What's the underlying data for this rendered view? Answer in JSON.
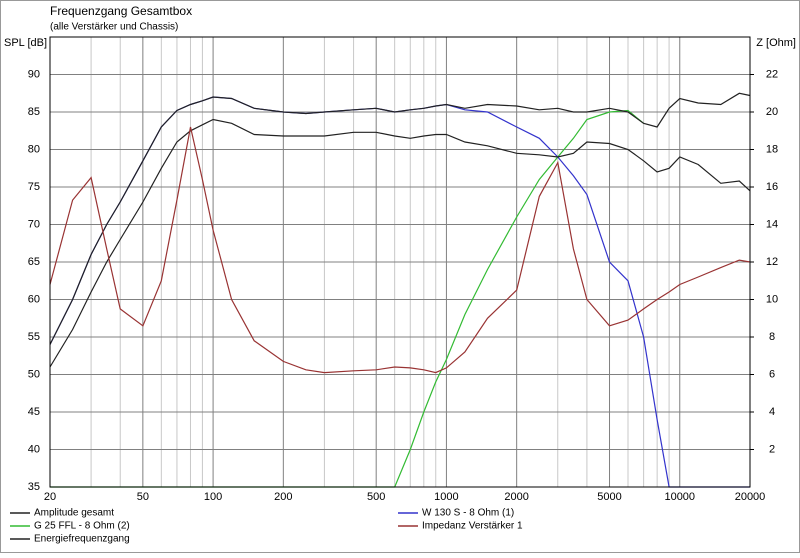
{
  "chart_data": {
    "type": "line",
    "title": "Frequenzgang Gesamtbox",
    "subtitle": "(alle Verstärker und Chassis)",
    "y_label": "SPL [dB]",
    "y2_label": "Z [Ohm]",
    "xscale": "log",
    "grid": true,
    "legend": "bottom",
    "xlim": [
      20,
      20000
    ],
    "xticks": [
      20,
      50,
      100,
      200,
      500,
      1000,
      2000,
      5000,
      10000,
      20000
    ],
    "xminorticks": [
      30,
      40,
      60,
      70,
      80,
      90,
      300,
      400,
      600,
      700,
      800,
      900,
      3000,
      4000,
      6000,
      7000,
      8000,
      9000
    ],
    "ylim": [
      35,
      95
    ],
    "yticks": [
      35,
      40,
      45,
      50,
      55,
      60,
      65,
      70,
      75,
      80,
      85,
      90
    ],
    "y2lim": [
      0,
      24
    ],
    "y2ticks": [
      2,
      4,
      6,
      8,
      10,
      12,
      14,
      16,
      18,
      20,
      22
    ],
    "x": [
      20,
      25,
      30,
      35,
      40,
      50,
      60,
      70,
      80,
      90,
      100,
      120,
      150,
      200,
      250,
      300,
      400,
      500,
      600,
      700,
      800,
      900,
      1000,
      1200,
      1500,
      2000,
      2500,
      3000,
      3500,
      4000,
      5000,
      6000,
      7000,
      8000,
      9000,
      10000,
      12000,
      15000,
      18000,
      20000
    ],
    "series": [
      {
        "name": "W 130 S - 8 Ohm (1)",
        "color": "#3333cc",
        "values": [
          54,
          60,
          66,
          70,
          73,
          78.5,
          83,
          85.2,
          86,
          86.5,
          87,
          86.8,
          85.5,
          85,
          84.8,
          85,
          85.3,
          85.5,
          85,
          85.3,
          85.5,
          85.8,
          86,
          85.3,
          85,
          83,
          81.5,
          79,
          76.5,
          74,
          65,
          62.5,
          55,
          44,
          35,
          35,
          35,
          35,
          35,
          35
        ]
      },
      {
        "name": "G 25 FFL - 8 Ohm (2)",
        "color": "#33bb33",
        "values": [
          35,
          35,
          35,
          35,
          35,
          35,
          35,
          35,
          35,
          35,
          35,
          35,
          35,
          35,
          35,
          35,
          35,
          35,
          35,
          40,
          45,
          49,
          52,
          58,
          64,
          71,
          76,
          79,
          81.5,
          84,
          85,
          85.2,
          83.5,
          null,
          null,
          null,
          null,
          null,
          null,
          null
        ]
      },
      {
        "name": "Amplitude gesamt",
        "color": "#222222",
        "values": [
          54,
          60,
          66,
          70,
          73,
          78.5,
          83,
          85.2,
          86,
          86.5,
          87,
          86.8,
          85.5,
          85,
          84.8,
          85,
          85.3,
          85.5,
          85,
          85.3,
          85.5,
          85.8,
          86,
          85.5,
          86,
          85.8,
          85.3,
          85.5,
          85,
          85,
          85.5,
          85,
          83.5,
          83,
          85.5,
          86.8,
          86.2,
          86,
          87.5,
          87.2
        ]
      },
      {
        "name": "Energiefrequenzgang",
        "color": "#222222",
        "values": [
          51,
          56,
          61,
          65,
          68,
          73,
          77.5,
          81,
          82.5,
          83.3,
          84,
          83.5,
          82,
          81.8,
          81.8,
          81.8,
          82.3,
          82.3,
          81.8,
          81.5,
          81.8,
          82,
          82,
          81,
          80.5,
          79.5,
          79.3,
          79,
          79.5,
          81,
          80.8,
          80,
          78.5,
          77,
          77.5,
          79,
          78,
          75.5,
          75.8,
          74.5
        ]
      },
      {
        "name": "Impedanz Verstärker 1",
        "color": "#993333",
        "axis": "y2",
        "values": [
          10.8,
          15.3,
          16.5,
          12.7,
          9.5,
          8.6,
          11,
          15.3,
          19.2,
          16.4,
          13.7,
          10,
          7.8,
          6.7,
          6.25,
          6.1,
          6.2,
          6.25,
          6.4,
          6.35,
          6.25,
          6.1,
          6.35,
          7.2,
          9,
          10.5,
          15.5,
          17.3,
          12.7,
          10,
          8.6,
          8.9,
          9.5,
          10,
          10.4,
          10.8,
          11.2,
          11.7,
          12.1,
          12
        ]
      }
    ]
  }
}
